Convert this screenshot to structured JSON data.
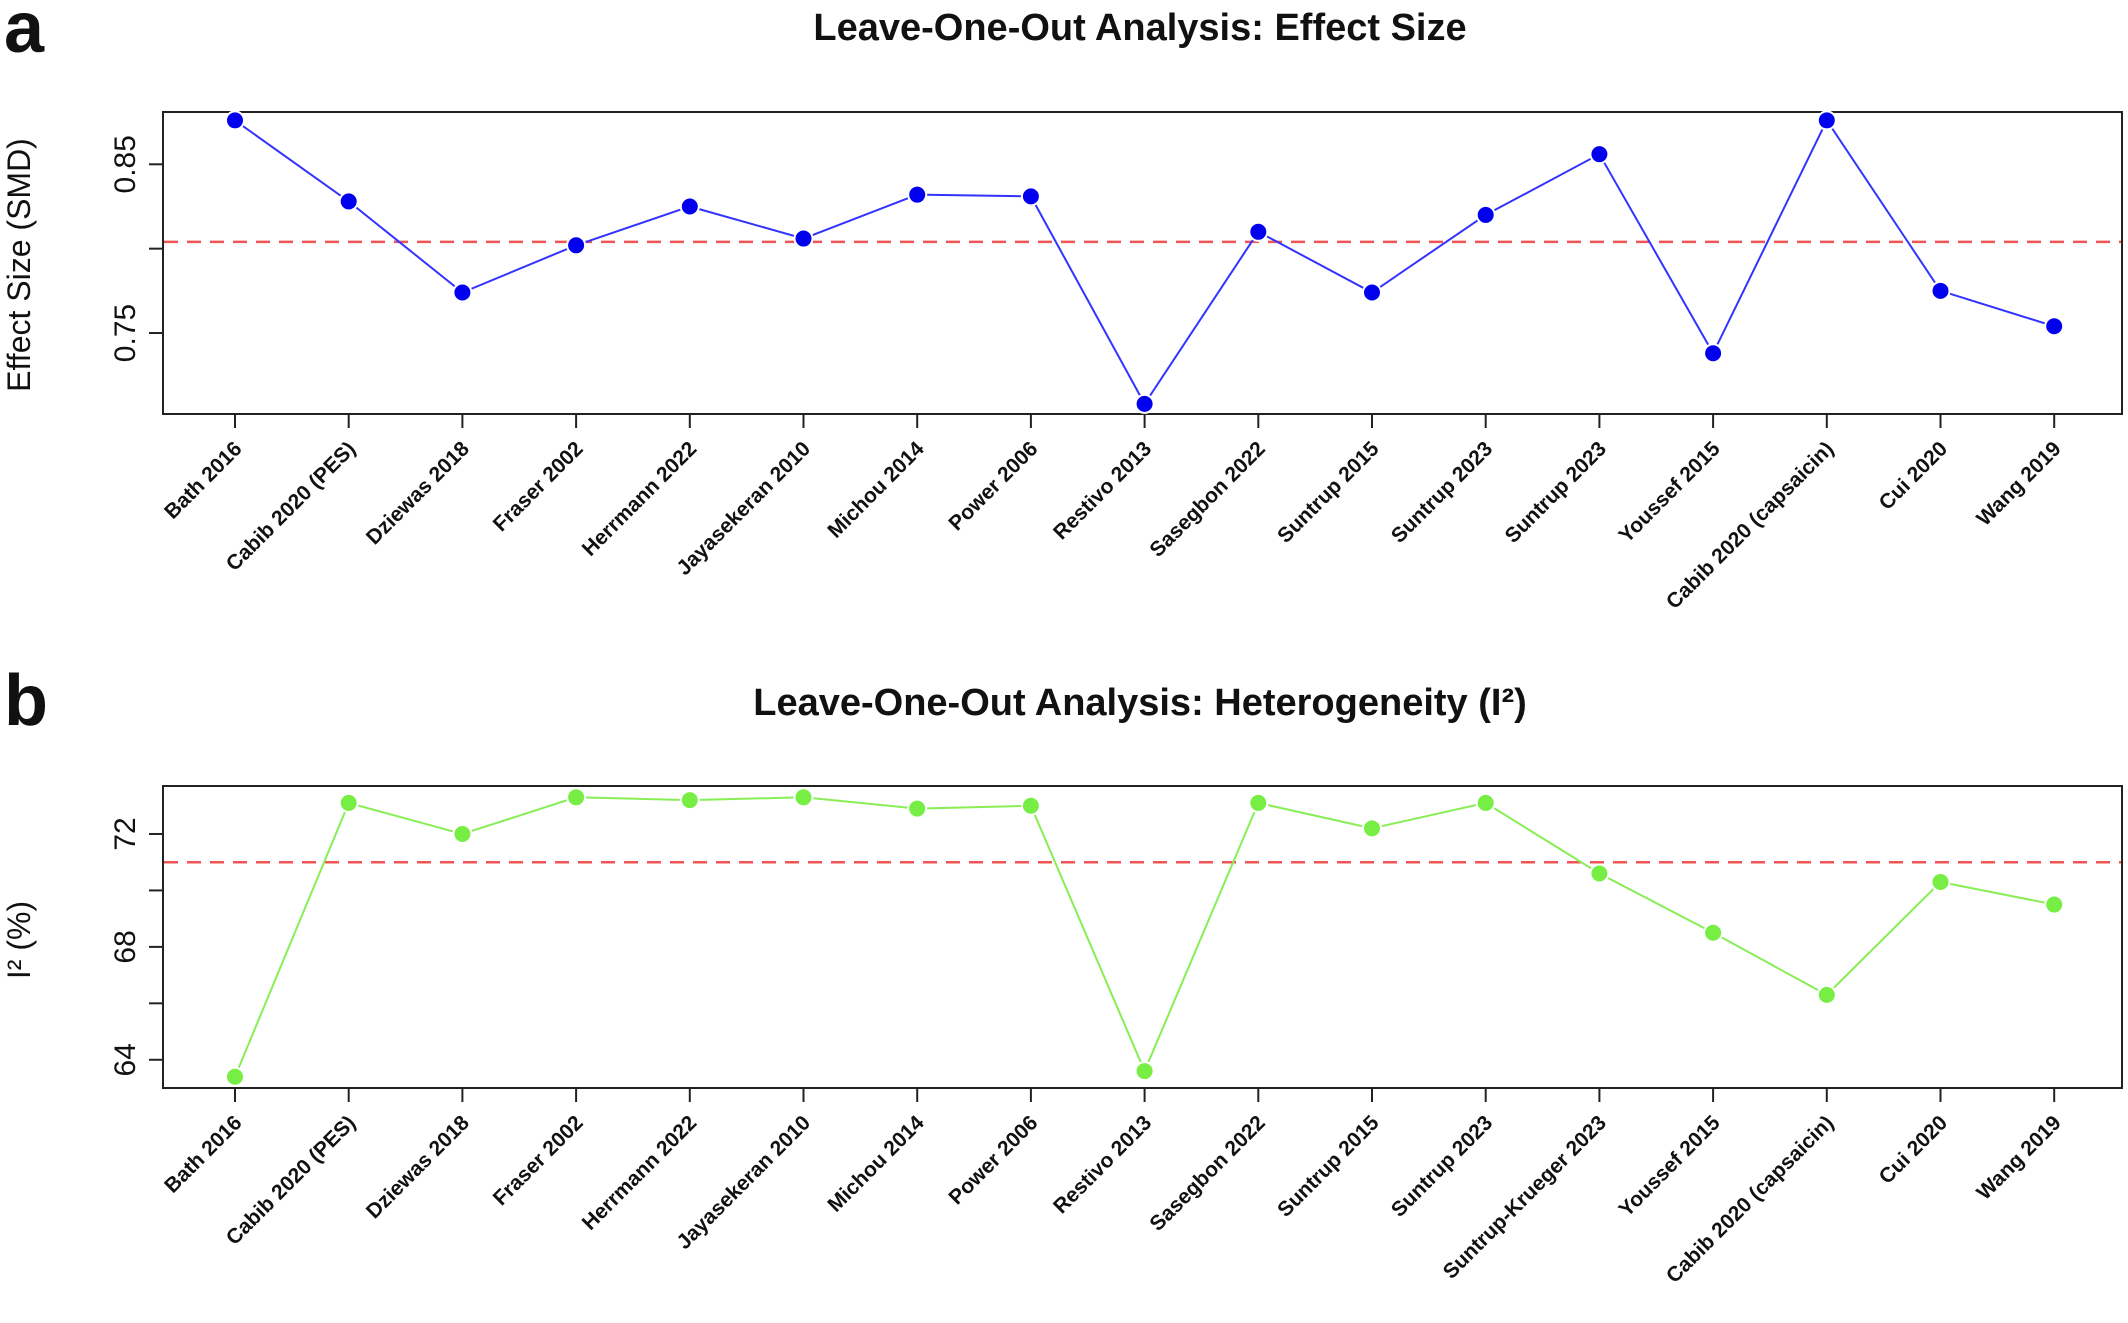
{
  "chart_data": [
    {
      "panel_label": "a",
      "type": "line",
      "title": "Leave-One-Out Analysis: Effect Size",
      "xlabel": "",
      "ylabel": "Effect Size (SMD)",
      "ylim": [
        0.702,
        0.881
      ],
      "yticks": [
        0.75,
        0.85
      ],
      "ytick_labels": [
        "0.75",
        "0.85"
      ],
      "ytick_marks": [
        0.75,
        0.8,
        0.85
      ],
      "categories": [
        "Bath 2016",
        "Cabib 2020 (PES)",
        "Dziewas 2018",
        "Fraser 2002",
        "Herrmann 2022",
        "Jayasekeran 2010",
        "Michou 2014",
        "Power 2006",
        "Restivo 2013",
        "Sasegbon 2022",
        "Suntrup 2015",
        "Suntrup 2023",
        "Suntrup 2023",
        "Youssef 2015",
        "Cabib 2020 (capsaicin)",
        "Cui 2020",
        "Wang 2019"
      ],
      "values": [
        0.876,
        0.828,
        0.774,
        0.802,
        0.825,
        0.806,
        0.832,
        0.831,
        0.708,
        0.81,
        0.774,
        0.82,
        0.856,
        0.738,
        0.876,
        0.775,
        0.754
      ],
      "reference_line": 0.804,
      "line_color": "#3333ff",
      "marker_color": "#0000ee",
      "reference_color": "#ee5555",
      "grid": false
    },
    {
      "panel_label": "b",
      "type": "line",
      "title": "Leave-One-Out Analysis: Heterogeneity (I²)",
      "xlabel": "",
      "ylabel": "I² (%)",
      "ylim": [
        63.0,
        73.7
      ],
      "yticks": [
        64,
        68,
        72
      ],
      "ytick_labels": [
        "64",
        "68",
        "72"
      ],
      "ytick_marks": [
        64,
        66,
        68,
        70,
        72
      ],
      "categories": [
        "Bath 2016",
        "Cabib 2020 (PES)",
        "Dziewas 2018",
        "Fraser 2002",
        "Herrmann 2022",
        "Jayasekeran 2010",
        "Michou 2014",
        "Power 2006",
        "Restivo 2013",
        "Sasegbon 2022",
        "Suntrup 2015",
        "Suntrup 2023",
        "Suntrup-Krueger 2023",
        "Youssef 2015",
        "Cabib 2020 (capsaicin)",
        "Cui 2020",
        "Wang 2019"
      ],
      "values": [
        63.4,
        73.1,
        72.0,
        73.3,
        73.2,
        73.3,
        72.9,
        73.0,
        63.6,
        73.1,
        72.2,
        73.1,
        70.6,
        68.5,
        66.3,
        70.3,
        69.5
      ],
      "reference_line": 71.0,
      "line_color": "#88ee55",
      "marker_color": "#77ee44",
      "reference_color": "#ee5555",
      "grid": false
    }
  ]
}
